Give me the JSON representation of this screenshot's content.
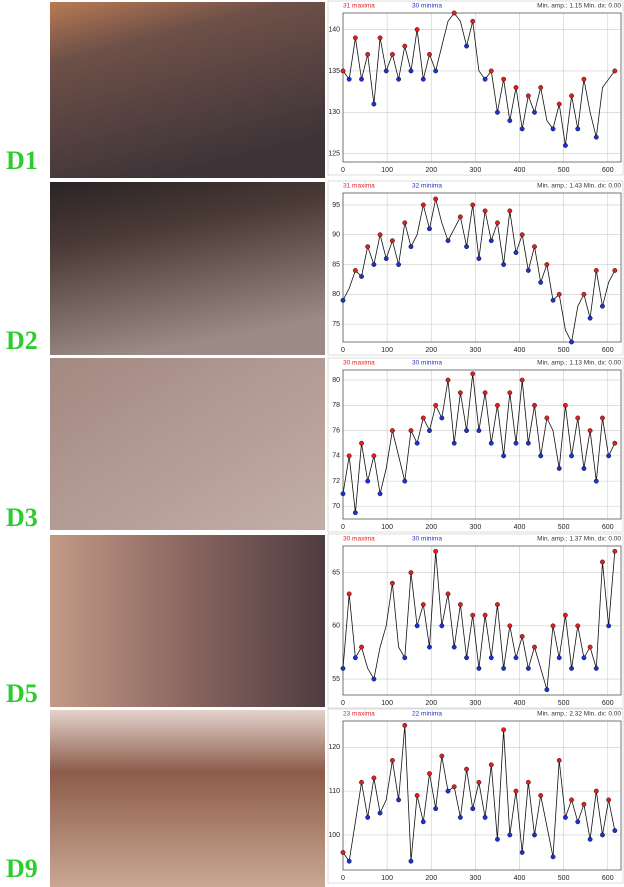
{
  "chart_data": [
    {
      "type": "line",
      "label": "D1",
      "maxima_text": "31 maxima",
      "minima_text": "30 minima",
      "info": "Min. amp.: 1.15  Min. dx: 0.00",
      "x": [
        0,
        14,
        28,
        42,
        56,
        70,
        84,
        98,
        112,
        126,
        140,
        154,
        168,
        182,
        196,
        210,
        224,
        238,
        252,
        266,
        280,
        294,
        308,
        322,
        336,
        350,
        364,
        378,
        392,
        406,
        420,
        434,
        448,
        462,
        476,
        490,
        504,
        518,
        532,
        546,
        560,
        574,
        588,
        602,
        616
      ],
      "values": [
        135,
        134,
        139,
        134,
        137,
        131,
        139,
        135,
        137,
        134,
        138,
        135,
        140,
        134,
        137,
        135,
        138,
        141,
        142,
        141,
        138,
        141,
        135,
        134,
        135,
        130,
        134,
        129,
        133,
        128,
        132,
        130,
        133,
        129,
        128,
        131,
        126,
        132,
        128,
        134,
        130,
        127,
        133,
        134,
        135
      ],
      "xlim": [
        0,
        630
      ],
      "xticks": [
        0,
        100,
        200,
        300,
        400,
        500,
        600
      ],
      "ylim": [
        124,
        142
      ],
      "yticks": [
        125,
        130,
        135,
        140
      ],
      "color": "#111111",
      "max_color": "#e02020",
      "min_color": "#2030d0",
      "grid": true
    },
    {
      "type": "line",
      "label": "D2",
      "maxima_text": "31 maxima",
      "minima_text": "32 minima",
      "info": "Min. amp.: 1.43  Min. dx: 0.00",
      "x": [
        0,
        14,
        28,
        42,
        56,
        70,
        84,
        98,
        112,
        126,
        140,
        154,
        168,
        182,
        196,
        210,
        224,
        238,
        252,
        266,
        280,
        294,
        308,
        322,
        336,
        350,
        364,
        378,
        392,
        406,
        420,
        434,
        448,
        462,
        476,
        490,
        504,
        518,
        532,
        546,
        560,
        574,
        588,
        602,
        616
      ],
      "values": [
        79,
        81,
        84,
        83,
        88,
        85,
        90,
        86,
        89,
        85,
        92,
        88,
        90,
        95,
        91,
        96,
        92,
        89,
        91,
        93,
        88,
        95,
        86,
        94,
        89,
        92,
        85,
        94,
        87,
        90,
        84,
        88,
        82,
        85,
        79,
        80,
        74,
        72,
        78,
        80,
        76,
        84,
        78,
        82,
        84
      ],
      "xlim": [
        0,
        630
      ],
      "xticks": [
        0,
        100,
        200,
        300,
        400,
        500,
        600
      ],
      "ylim": [
        72,
        97
      ],
      "yticks": [
        75,
        80,
        85,
        90,
        95
      ],
      "color": "#111111",
      "max_color": "#e02020",
      "min_color": "#2030d0",
      "grid": true
    },
    {
      "type": "line",
      "label": "D3",
      "maxima_text": "30 maxima",
      "minima_text": "30 minima",
      "info": "Min. amp.: 1.13  Min. dx: 0.00",
      "x": [
        0,
        14,
        28,
        42,
        56,
        70,
        84,
        98,
        112,
        126,
        140,
        154,
        168,
        182,
        196,
        210,
        224,
        238,
        252,
        266,
        280,
        294,
        308,
        322,
        336,
        350,
        364,
        378,
        392,
        406,
        420,
        434,
        448,
        462,
        476,
        490,
        504,
        518,
        532,
        546,
        560,
        574,
        588,
        602,
        616
      ],
      "values": [
        71,
        74,
        69.5,
        75,
        72,
        74,
        71,
        73,
        76,
        74,
        72,
        76,
        75,
        77,
        76,
        78,
        77,
        80,
        75,
        79,
        76,
        80.5,
        76,
        79,
        75,
        78,
        74,
        79,
        75,
        80,
        75,
        78,
        74,
        77,
        76,
        73,
        78,
        74,
        77,
        73,
        76,
        72,
        77,
        74,
        75
      ],
      "xlim": [
        0,
        630
      ],
      "xticks": [
        0,
        100,
        200,
        300,
        400,
        500,
        600
      ],
      "ylim": [
        69,
        80.8
      ],
      "yticks": [
        70,
        72,
        74,
        76,
        78,
        80
      ],
      "color": "#111111",
      "max_color": "#e02020",
      "min_color": "#2030d0",
      "grid": true
    },
    {
      "type": "line",
      "label": "D5",
      "maxima_text": "30 maxima",
      "minima_text": "30 minima",
      "info": "Min. amp.: 1.37  Min. dx: 0.00",
      "x": [
        0,
        14,
        28,
        42,
        56,
        70,
        84,
        98,
        112,
        126,
        140,
        154,
        168,
        182,
        196,
        210,
        224,
        238,
        252,
        266,
        280,
        294,
        308,
        322,
        336,
        350,
        364,
        378,
        392,
        406,
        420,
        434,
        448,
        462,
        476,
        490,
        504,
        518,
        532,
        546,
        560,
        574,
        588,
        602,
        616
      ],
      "values": [
        56,
        63,
        57,
        58,
        56,
        55,
        58,
        60,
        64,
        58,
        57,
        65,
        60,
        62,
        58,
        67,
        60,
        63,
        58,
        62,
        57,
        61,
        56,
        61,
        57,
        62,
        56,
        60,
        57,
        59,
        56,
        58,
        56,
        54,
        60,
        57,
        61,
        56,
        60,
        57,
        58,
        56,
        66,
        60,
        67
      ],
      "xlim": [
        0,
        630
      ],
      "xticks": [
        0,
        100,
        200,
        300,
        400,
        500,
        600
      ],
      "ylim": [
        53.5,
        67.5
      ],
      "yticks": [
        55,
        60,
        65
      ],
      "color": "#111111",
      "max_color": "#e02020",
      "min_color": "#2030d0",
      "grid": true
    },
    {
      "type": "line",
      "label": "D9",
      "maxima_text": "23 maxima",
      "minima_text": "22 minima",
      "info": "Min. amp.: 2.32  Min. dx: 0.00",
      "x": [
        0,
        14,
        28,
        42,
        56,
        70,
        84,
        98,
        112,
        126,
        140,
        154,
        168,
        182,
        196,
        210,
        224,
        238,
        252,
        266,
        280,
        294,
        308,
        322,
        336,
        350,
        364,
        378,
        392,
        406,
        420,
        434,
        448,
        462,
        476,
        490,
        504,
        518,
        532,
        546,
        560,
        574,
        588,
        602,
        616
      ],
      "values": [
        96,
        94,
        103,
        112,
        104,
        113,
        105,
        108,
        117,
        108,
        125,
        94,
        109,
        103,
        114,
        106,
        118,
        110,
        111,
        104,
        115,
        106,
        112,
        104,
        116,
        99,
        124,
        100,
        110,
        96,
        112,
        100,
        109,
        102,
        95,
        117,
        104,
        108,
        103,
        107,
        99,
        110,
        100,
        108,
        101
      ],
      "xlim": [
        0,
        630
      ],
      "xticks": [
        0,
        100,
        200,
        300,
        400,
        500,
        600
      ],
      "ylim": [
        92,
        126
      ],
      "yticks": [
        100,
        110,
        120
      ],
      "color": "#111111",
      "max_color": "#e02020",
      "min_color": "#2030d0",
      "grid": true
    }
  ]
}
